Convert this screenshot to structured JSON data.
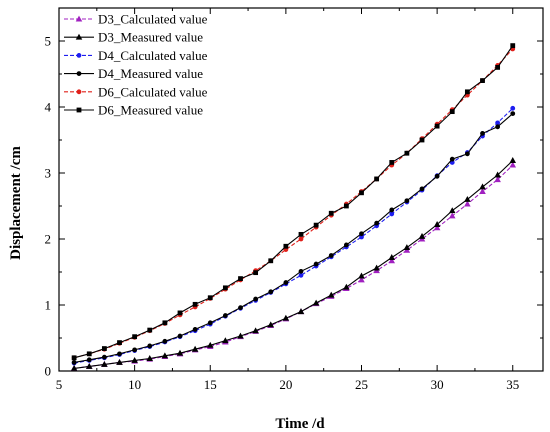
{
  "chart_data": {
    "type": "line",
    "xlabel": "Time /d",
    "ylabel": "Displacement /cm",
    "xlim": [
      5,
      37
    ],
    "ylim": [
      0,
      5.5
    ],
    "xticks": [
      5,
      10,
      15,
      20,
      25,
      30,
      35
    ],
    "yticks": [
      0,
      1,
      2,
      3,
      4,
      5
    ],
    "grid": false,
    "legend_position": "top-left",
    "x": [
      6,
      7,
      8,
      9,
      10,
      11,
      12,
      13,
      14,
      15,
      16,
      17,
      18,
      19,
      20,
      21,
      22,
      23,
      24,
      25,
      26,
      27,
      28,
      29,
      30,
      31,
      32,
      33,
      34,
      35
    ],
    "series": [
      {
        "name": "D3_Calculated value",
        "color": "#a020c0",
        "line_style": "dashed",
        "marker": "triangle",
        "values": [
          0.04,
          0.07,
          0.1,
          0.13,
          0.15,
          0.18,
          0.22,
          0.26,
          0.32,
          0.37,
          0.44,
          0.52,
          0.6,
          0.69,
          0.79,
          0.9,
          1.02,
          1.13,
          1.25,
          1.38,
          1.52,
          1.67,
          1.83,
          2.0,
          2.17,
          2.35,
          2.53,
          2.72,
          2.9,
          3.12
        ]
      },
      {
        "name": "D3_Measured value",
        "color": "#000000",
        "line_style": "solid",
        "marker": "triangle",
        "values": [
          0.04,
          0.07,
          0.1,
          0.13,
          0.16,
          0.19,
          0.23,
          0.27,
          0.33,
          0.39,
          0.46,
          0.53,
          0.61,
          0.7,
          0.8,
          0.9,
          1.03,
          1.15,
          1.27,
          1.44,
          1.56,
          1.72,
          1.87,
          2.04,
          2.22,
          2.43,
          2.6,
          2.79,
          2.97,
          3.19
        ]
      },
      {
        "name": "D4_Calculated value",
        "color": "#1e1ef0",
        "line_style": "dashed",
        "marker": "circle",
        "values": [
          0.12,
          0.16,
          0.2,
          0.25,
          0.31,
          0.37,
          0.44,
          0.52,
          0.61,
          0.71,
          0.83,
          0.95,
          1.07,
          1.19,
          1.32,
          1.45,
          1.59,
          1.73,
          1.88,
          2.03,
          2.2,
          2.38,
          2.56,
          2.74,
          2.96,
          3.16,
          3.31,
          3.56,
          3.76,
          3.98
        ]
      },
      {
        "name": "D4_Measured value",
        "color": "#000000",
        "line_style": "solid",
        "marker": "circle",
        "values": [
          0.13,
          0.17,
          0.21,
          0.26,
          0.32,
          0.38,
          0.45,
          0.53,
          0.63,
          0.73,
          0.84,
          0.96,
          1.09,
          1.2,
          1.34,
          1.51,
          1.62,
          1.75,
          1.91,
          2.08,
          2.24,
          2.44,
          2.58,
          2.76,
          2.95,
          3.21,
          3.29,
          3.6,
          3.7,
          3.9
        ]
      },
      {
        "name": "D6_Calculated value",
        "color": "#e0201a",
        "line_style": "dashed",
        "marker": "circle",
        "values": [
          0.2,
          0.26,
          0.33,
          0.42,
          0.51,
          0.61,
          0.72,
          0.85,
          0.97,
          1.1,
          1.24,
          1.38,
          1.52,
          1.67,
          1.84,
          2.0,
          2.18,
          2.36,
          2.53,
          2.72,
          2.91,
          3.12,
          3.3,
          3.52,
          3.74,
          3.96,
          4.18,
          4.4,
          4.63,
          4.88
        ]
      },
      {
        "name": "D6_Measured value",
        "color": "#000000",
        "line_style": "solid",
        "marker": "square",
        "values": [
          0.2,
          0.26,
          0.34,
          0.43,
          0.52,
          0.62,
          0.73,
          0.88,
          1.01,
          1.11,
          1.26,
          1.4,
          1.49,
          1.67,
          1.89,
          2.07,
          2.21,
          2.39,
          2.5,
          2.7,
          2.91,
          3.16,
          3.3,
          3.5,
          3.71,
          3.93,
          4.23,
          4.4,
          4.6,
          4.93
        ]
      }
    ]
  }
}
